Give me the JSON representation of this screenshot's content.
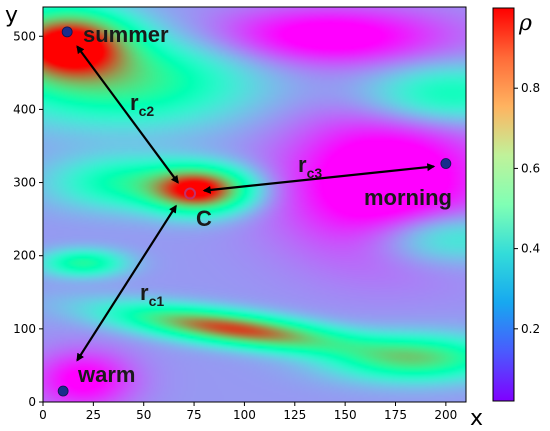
{
  "chart_data": {
    "type": "heatmap",
    "title": "",
    "xlabel": "x",
    "ylabel": "y",
    "xlim": [
      0,
      210
    ],
    "ylim": [
      0,
      540
    ],
    "x_ticks": [
      0,
      25,
      50,
      75,
      100,
      125,
      150,
      175,
      200
    ],
    "y_ticks": [
      0,
      100,
      200,
      300,
      400,
      500
    ],
    "colormap": "rainbow",
    "colorbar": {
      "label": "ρ",
      "range": [
        0.02,
        1.0
      ],
      "ticks": [
        0.2,
        0.4,
        0.6,
        0.8
      ],
      "tick_labels": [
        "0.2",
        "0.4",
        "0.6",
        "0.8"
      ]
    },
    "points": [
      {
        "id": "summer",
        "label": "summer",
        "x": 12,
        "y": 506,
        "color": "#1a2d8c"
      },
      {
        "id": "warm",
        "label": "warm",
        "x": 10,
        "y": 15,
        "color": "#1a2d8c"
      },
      {
        "id": "morning",
        "label": "morning",
        "x": 200,
        "y": 326,
        "color": "#1a2d8c"
      },
      {
        "id": "c",
        "label": "C",
        "x": 73,
        "y": 285,
        "color": "#c0306a"
      }
    ],
    "arrows": [
      {
        "from": "c",
        "to": "warm",
        "label": "r",
        "subscript": "c1",
        "from_xy": [
          66,
          268
        ],
        "to_xy": [
          17,
          57
        ]
      },
      {
        "from": "c",
        "to": "summer",
        "label": "r",
        "subscript": "c2",
        "from_xy": [
          67,
          300
        ],
        "to_xy": [
          17,
          486
        ]
      },
      {
        "from": "c",
        "to": "morning",
        "label": "r",
        "subscript": "c3",
        "from_xy": [
          80,
          289
        ],
        "to_xy": [
          194,
          322
        ]
      }
    ]
  }
}
